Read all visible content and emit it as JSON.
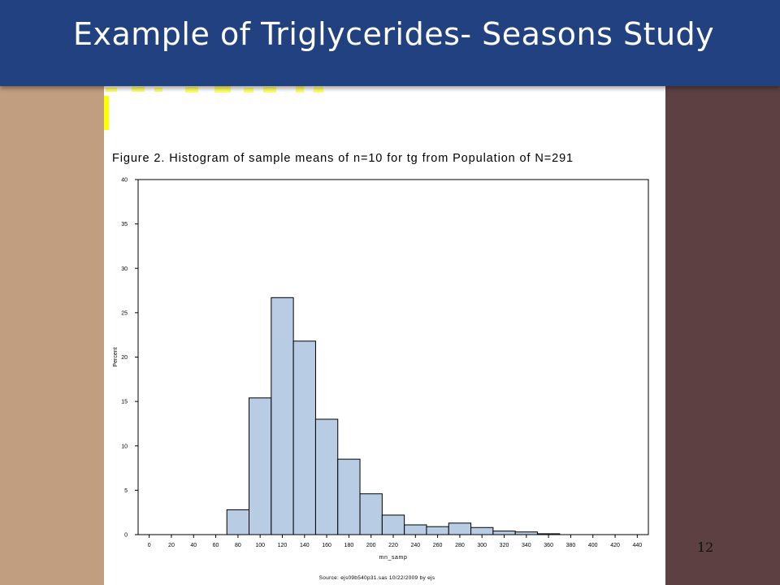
{
  "slide": {
    "title": "Example of Triglycerides- Seasons Study",
    "page_number": "12",
    "colors": {
      "title_bar": "#224181",
      "left_panel": "#c19e80",
      "right_panel": "#5d4042",
      "bar_fill": "#b8cce4"
    }
  },
  "chart_data": {
    "type": "bar",
    "title": "Figure 2.  Histogram of sample means of n=10 for tg from Population of N=291",
    "xlabel": "mn_samp",
    "ylabel": "Percent",
    "footnote": "Source: ejs09b540p31.sas 10/22/2009 by ejs",
    "x_ticks": [
      0,
      20,
      40,
      60,
      80,
      100,
      120,
      140,
      160,
      180,
      200,
      220,
      240,
      260,
      280,
      300,
      320,
      340,
      360,
      380,
      400,
      420,
      440
    ],
    "y_ticks": [
      0,
      5,
      10,
      15,
      20,
      25,
      30,
      35,
      40
    ],
    "xlim": [
      -10,
      450
    ],
    "ylim": [
      0,
      40
    ],
    "bin_width": 20,
    "bins": [
      {
        "center": 80,
        "value": 2.8
      },
      {
        "center": 100,
        "value": 15.4
      },
      {
        "center": 120,
        "value": 26.7
      },
      {
        "center": 140,
        "value": 21.8
      },
      {
        "center": 160,
        "value": 13.0
      },
      {
        "center": 180,
        "value": 8.5
      },
      {
        "center": 200,
        "value": 4.6
      },
      {
        "center": 220,
        "value": 2.2
      },
      {
        "center": 240,
        "value": 1.1
      },
      {
        "center": 260,
        "value": 0.9
      },
      {
        "center": 280,
        "value": 1.3
      },
      {
        "center": 300,
        "value": 0.8
      },
      {
        "center": 320,
        "value": 0.4
      },
      {
        "center": 340,
        "value": 0.3
      },
      {
        "center": 360,
        "value": 0.1
      }
    ],
    "grid": false,
    "legend": "none"
  }
}
